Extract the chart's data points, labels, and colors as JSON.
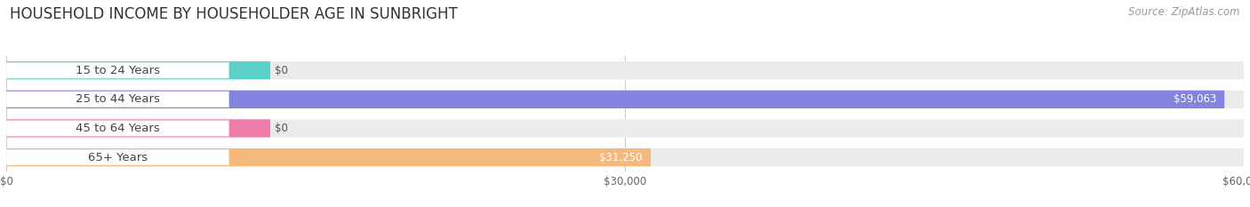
{
  "title": "HOUSEHOLD INCOME BY HOUSEHOLDER AGE IN SUNBRIGHT",
  "source": "Source: ZipAtlas.com",
  "categories": [
    "15 to 24 Years",
    "25 to 44 Years",
    "45 to 64 Years",
    "65+ Years"
  ],
  "values": [
    0,
    59063,
    0,
    31250
  ],
  "max_value": 60000,
  "bar_colors": [
    "#5bcfca",
    "#8484df",
    "#f07caa",
    "#f5b97c"
  ],
  "bar_bg_color": "#ebebeb",
  "label_bg_color": "#ffffff",
  "tick_labels": [
    "$0",
    "$30,000",
    "$60,000"
  ],
  "tick_values": [
    0,
    30000,
    60000
  ],
  "value_labels": [
    "$0",
    "$59,063",
    "$0",
    "$31,250"
  ],
  "title_fontsize": 12,
  "source_fontsize": 8.5,
  "label_fontsize": 9.5,
  "value_fontsize": 8.5,
  "tick_fontsize": 8.5,
  "bar_height": 0.62,
  "background_color": "#ffffff",
  "grid_color": "#cccccc",
  "label_color": "#444444",
  "value_color_dark": "#ffffff",
  "value_color_light": "#555555"
}
